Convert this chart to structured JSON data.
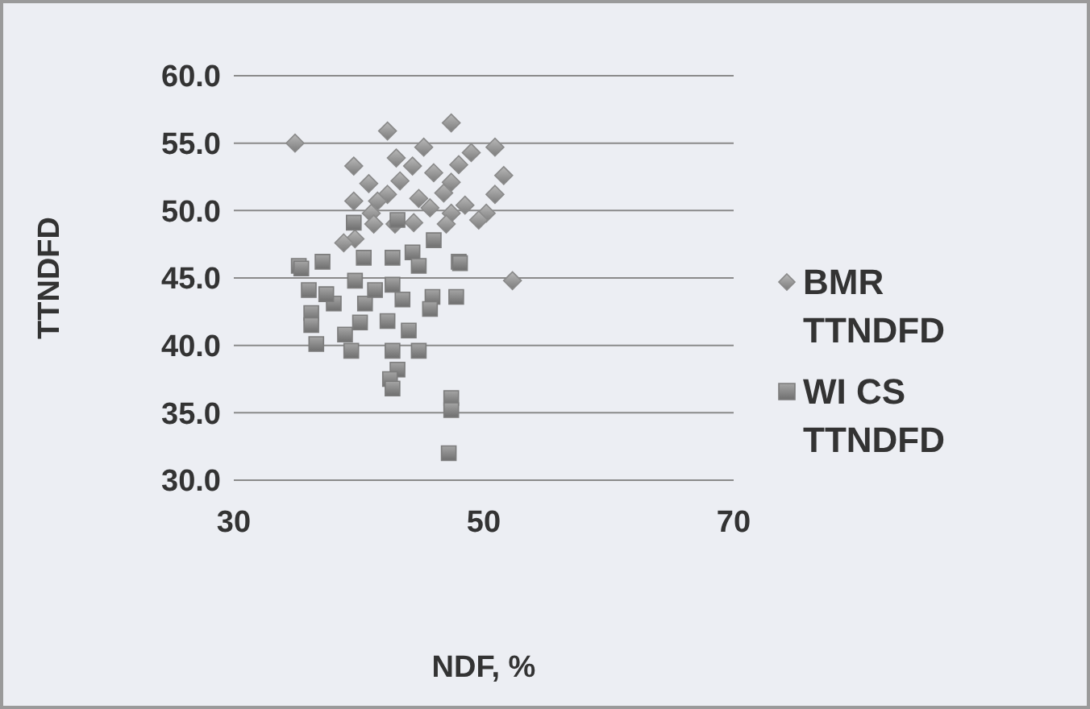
{
  "chart_data": {
    "type": "scatter",
    "xlabel": "NDF, %",
    "ylabel": "TTNDFD",
    "xlim": [
      30,
      70
    ],
    "xticks": [
      30,
      50,
      70
    ],
    "ylim": [
      30,
      60
    ],
    "yticks": [
      {
        "value": 30,
        "label": "30.0"
      },
      {
        "value": 35,
        "label": "35.0"
      },
      {
        "value": 40,
        "label": "40.0"
      },
      {
        "value": 45,
        "label": "45.0"
      },
      {
        "value": 50,
        "label": "50.0"
      },
      {
        "value": 55,
        "label": "55.0"
      },
      {
        "value": 60,
        "label": "60.0"
      }
    ],
    "grid": "y",
    "legend": "right",
    "series": [
      {
        "name": "BMR TTNDFD",
        "color": "#8a8a8a",
        "marker": "diamond",
        "x": [
          34.9,
          42.3,
          47.4,
          45.2,
          50.9,
          49.0,
          39.6,
          43.0,
          44.3,
          46.0,
          48.0,
          51.6,
          40.8,
          43.3,
          47.4,
          42.3,
          46.8,
          50.9,
          39.6,
          41.5,
          44.8,
          48.5,
          50.2,
          49.6,
          47.4,
          45.7,
          41.0,
          42.9,
          39.7,
          41.2,
          44.4,
          47.0,
          38.8,
          52.3
        ],
        "values": [
          55.0,
          55.9,
          56.5,
          54.7,
          54.7,
          54.3,
          53.3,
          53.9,
          53.3,
          52.8,
          53.4,
          52.6,
          52.0,
          52.2,
          52.1,
          51.2,
          51.3,
          51.2,
          50.7,
          50.7,
          50.9,
          50.4,
          49.8,
          49.3,
          49.8,
          50.2,
          49.8,
          49.0,
          47.9,
          49.0,
          49.1,
          49.0,
          47.6,
          44.8
        ]
      },
      {
        "name": "WI CS TTNDFD",
        "color": "#7c7c7c",
        "marker": "square",
        "x": [
          39.6,
          43.1,
          46.0,
          48.0,
          35.2,
          37.1,
          40.4,
          42.7,
          44.3,
          35.4,
          44.8,
          48.1,
          39.7,
          42.7,
          36.0,
          38.0,
          40.5,
          43.5,
          45.9,
          47.8,
          36.2,
          36.2,
          38.9,
          40.1,
          42.3,
          44.0,
          36.6,
          39.4,
          42.7,
          44.8,
          43.1,
          42.5,
          42.7,
          47.4,
          47.4,
          47.2,
          37.4,
          41.3,
          45.7
        ],
        "values": [
          49.1,
          49.3,
          47.8,
          46.2,
          45.9,
          46.2,
          46.5,
          46.5,
          46.9,
          45.7,
          45.9,
          46.1,
          44.8,
          44.5,
          44.1,
          43.1,
          43.1,
          43.4,
          43.6,
          43.6,
          42.4,
          41.5,
          40.8,
          41.7,
          41.8,
          41.1,
          40.1,
          39.6,
          39.6,
          39.6,
          38.2,
          37.5,
          36.8,
          36.1,
          35.2,
          32.0,
          43.8,
          44.1,
          42.7
        ]
      }
    ]
  }
}
